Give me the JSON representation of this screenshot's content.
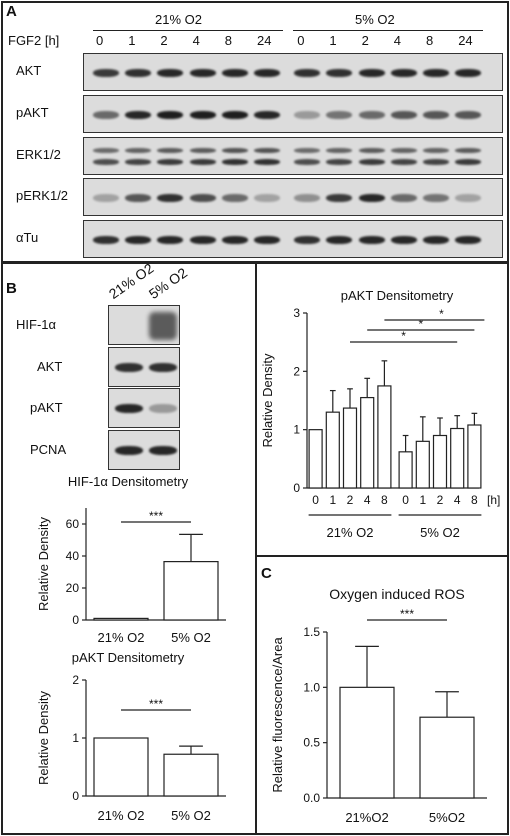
{
  "panelA": {
    "letter": "A",
    "group_labels": [
      "21% O2",
      "5% O2"
    ],
    "fgf2_label": "FGF2 [h]",
    "timepoints": [
      "0",
      "1",
      "2",
      "4",
      "8",
      "24",
      "0",
      "1",
      "2",
      "4",
      "8",
      "24"
    ],
    "blots": [
      {
        "label": "AKT",
        "intensity": [
          0.85,
          0.9,
          0.95,
          0.95,
          0.95,
          0.95,
          0.9,
          0.9,
          0.95,
          0.95,
          0.95,
          0.95
        ]
      },
      {
        "label": "pAKT",
        "intensity": [
          0.6,
          0.95,
          1.0,
          1.0,
          1.0,
          0.95,
          0.35,
          0.55,
          0.6,
          0.7,
          0.7,
          0.7
        ]
      },
      {
        "label": "ERK1/2",
        "intensity": [
          0.75,
          0.8,
          0.85,
          0.85,
          0.9,
          0.9,
          0.75,
          0.8,
          0.85,
          0.8,
          0.8,
          0.85
        ]
      },
      {
        "label": "pERK1/2",
        "intensity": [
          0.3,
          0.7,
          0.9,
          0.75,
          0.6,
          0.3,
          0.4,
          0.85,
          0.95,
          0.6,
          0.55,
          0.3
        ]
      },
      {
        "label": "αTu",
        "intensity": [
          0.9,
          0.95,
          0.95,
          0.95,
          0.95,
          0.95,
          0.9,
          0.95,
          0.95,
          0.95,
          0.95,
          0.95
        ]
      }
    ]
  },
  "panelB": {
    "letter": "B",
    "col_labels": [
      "21% O2",
      "5% O2"
    ],
    "blots": [
      {
        "label": "HIF-1α",
        "intensity": [
          0.0,
          0.9
        ]
      },
      {
        "label": "AKT",
        "intensity": [
          0.9,
          0.9
        ]
      },
      {
        "label": "pAKT",
        "intensity": [
          0.95,
          0.35
        ]
      },
      {
        "label": "PCNA",
        "intensity": [
          0.95,
          0.95
        ]
      }
    ],
    "hif_chart": {
      "type": "bar",
      "title": "HIF-1α Densitometry",
      "ylabel": "Relative Density",
      "categories": [
        "21% O2",
        "5% O2"
      ],
      "values": [
        1,
        36.5
      ],
      "errors": [
        0,
        17
      ],
      "ylim": [
        0,
        70
      ],
      "yticks": [
        0,
        20,
        40,
        60
      ],
      "significance": "***"
    },
    "pakt_chart": {
      "type": "bar",
      "title": "pAKT Densitometry",
      "ylabel": "Relative Density",
      "categories": [
        "21% O2",
        "5% O2"
      ],
      "values": [
        1,
        0.72
      ],
      "errors": [
        0,
        0.14
      ],
      "ylim": [
        0,
        2
      ],
      "yticks": [
        0,
        1,
        2
      ],
      "significance": "***"
    }
  },
  "panelA_right_chart": {
    "type": "bar",
    "title": "pAKT Densitometry",
    "ylabel": "Relative Density",
    "x_unit": "[h]",
    "categories": [
      "0",
      "1",
      "2",
      "4",
      "8",
      "0",
      "1",
      "2",
      "4",
      "8"
    ],
    "group_labels": [
      "21% O2",
      "5% O2"
    ],
    "values": [
      1.0,
      1.3,
      1.37,
      1.55,
      1.75,
      0.62,
      0.8,
      0.9,
      1.02,
      1.08
    ],
    "errors": [
      0,
      0.37,
      0.33,
      0.33,
      0.43,
      0.28,
      0.42,
      0.3,
      0.22,
      0.2
    ],
    "ylim": [
      0,
      3
    ],
    "yticks": [
      0,
      1,
      2,
      3
    ],
    "significance": [
      "*",
      "*",
      "*"
    ]
  },
  "panelC": {
    "letter": "C",
    "chart": {
      "type": "bar",
      "title": "Oxygen induced ROS",
      "ylabel": "Relative fluorescence/Area",
      "categories": [
        "21%O2",
        "5%O2"
      ],
      "values": [
        1.0,
        0.73
      ],
      "errors": [
        0.37,
        0.23
      ],
      "ylim": [
        0,
        1.5
      ],
      "yticks": [
        "0.0",
        "0.5",
        "1.0",
        "1.5"
      ],
      "significance": "***"
    }
  }
}
